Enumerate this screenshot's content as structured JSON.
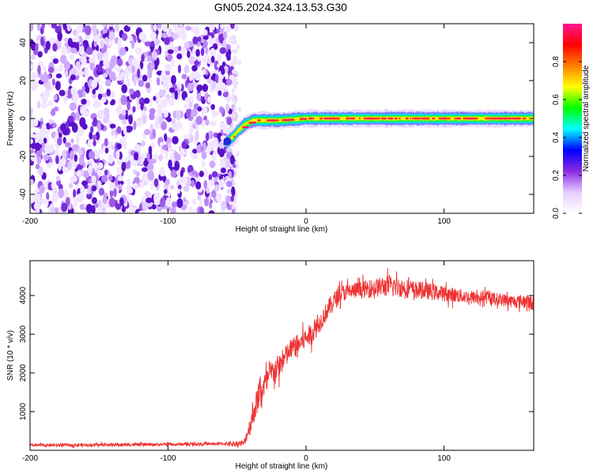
{
  "title": "GN05.2024.324.13.53.G30",
  "chart_data": [
    {
      "type": "heatmap",
      "xlabel": "Height of straight line (km)",
      "ylabel": "Frequency (Hz)",
      "xlim": [
        -200,
        165
      ],
      "ylim": [
        -50,
        50
      ],
      "x_ticks": [
        -200,
        -100,
        0,
        100
      ],
      "y_ticks": [
        -40,
        -20,
        0,
        20,
        40
      ],
      "noise_region_x": [
        -200,
        -51
      ],
      "signal_track": {
        "x": [
          -58,
          -55,
          -52,
          -50,
          -47,
          -44,
          -41,
          -38,
          -35,
          -30,
          -20,
          0,
          50,
          100,
          165
        ],
        "frequency": [
          -13,
          -11,
          -9,
          -7,
          -5,
          -3,
          -2,
          -1,
          -1,
          -1,
          -1,
          0,
          0,
          0,
          0
        ]
      },
      "colorbar": {
        "label": "Normalized spectral amplitude",
        "range": [
          0,
          1
        ],
        "ticks": [
          "0.0",
          "0.2",
          "0.4",
          "0.6",
          "0.8"
        ],
        "colors": [
          "#ffffff",
          "#e6ccff",
          "#8a2be2",
          "#0000ff",
          "#00ffff",
          "#00ff00",
          "#ffff00",
          "#ff8000",
          "#ff0000",
          "#ff1493"
        ]
      }
    },
    {
      "type": "line",
      "xlabel": "Height of straight line (km)",
      "ylabel": "SNR (10 * v/v)",
      "xlim": [
        -200,
        165
      ],
      "ylim": [
        0,
        4900
      ],
      "x_ticks": [
        -200,
        -100,
        0,
        100
      ],
      "y_ticks": [
        1000,
        2000,
        3000,
        4000
      ],
      "color": "#ee3333",
      "series": [
        {
          "x": [
            -200,
            -150,
            -100,
            -60,
            -45,
            -40,
            -35,
            -30,
            -25,
            -20,
            -15,
            -10,
            -5,
            0,
            5,
            10,
            15,
            20,
            25,
            30,
            40,
            50,
            60,
            70,
            80,
            90,
            100,
            110,
            120,
            130,
            140,
            150,
            160,
            165
          ],
          "values": [
            130,
            140,
            150,
            170,
            180,
            700,
            1350,
            1700,
            2000,
            2150,
            2400,
            2650,
            2750,
            2900,
            3050,
            3300,
            3600,
            3850,
            4050,
            4100,
            4150,
            4200,
            4250,
            4200,
            4150,
            4100,
            4050,
            4000,
            3950,
            3950,
            3900,
            3850,
            3850,
            3800
          ],
          "noise": [
            70,
            70,
            70,
            70,
            150,
            500,
            600,
            600,
            600,
            600,
            550,
            500,
            500,
            500,
            500,
            450,
            450,
            450,
            400,
            400,
            400,
            450,
            500,
            450,
            400,
            400,
            350,
            350,
            300,
            300,
            300,
            300,
            350,
            350
          ]
        }
      ]
    }
  ]
}
